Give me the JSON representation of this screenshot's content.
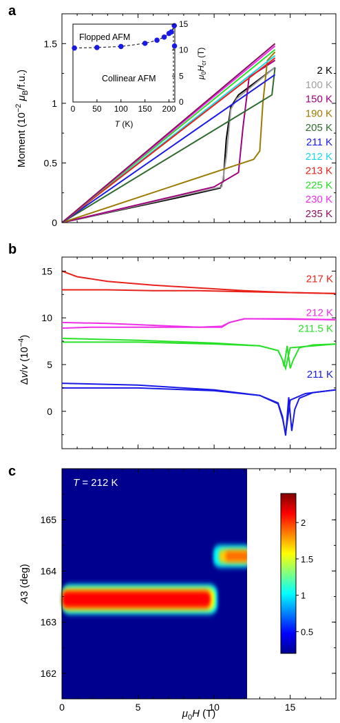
{
  "panels": {
    "a": "a",
    "b": "b",
    "c": "c"
  },
  "chart_data": [
    {
      "panel": "a",
      "type": "line",
      "xlabel": "",
      "ylabel": "Moment (10^-2 μB/f.u.)",
      "ylabel_parts": {
        "pre": "Moment (10",
        "exp": "−2",
        "mu": " μ",
        "sub": "B",
        "post": "/f.u.)"
      },
      "xlim": [
        0,
        18
      ],
      "ylim": [
        0,
        1.75
      ],
      "yticks": [
        0,
        0.5,
        1,
        1.5
      ],
      "ytick_labels": [
        "0",
        "0.5",
        "1",
        "1.5"
      ],
      "series": [
        {
          "name": "2 K",
          "color": "#000000",
          "x": [
            0,
            8,
            10.4,
            10.6,
            10.8,
            11.1,
            11.6,
            14
          ],
          "y": [
            0,
            0.22,
            0.29,
            0.35,
            0.7,
            0.97,
            1.07,
            1.3
          ]
        },
        {
          "name": "100 K",
          "color": "#a0a0a0",
          "x": [
            0,
            8,
            10.5,
            10.8,
            11.1,
            11.5,
            14
          ],
          "y": [
            0,
            0.23,
            0.3,
            0.55,
            0.95,
            1.04,
            1.3
          ]
        },
        {
          "name": "150 K",
          "color": "#a0007c",
          "x": [
            0,
            10,
            11.6,
            11.9,
            12.3,
            14
          ],
          "y": [
            0,
            0.3,
            0.42,
            0.8,
            1.22,
            1.36
          ]
        },
        {
          "name": "190 K",
          "color": "#9a7a00",
          "x": [
            0,
            12.6,
            13,
            13.2,
            13.5,
            14
          ],
          "y": [
            0,
            0.53,
            0.6,
            1.0,
            1.36,
            1.43
          ]
        },
        {
          "name": "205 K",
          "color": "#2f6b2f",
          "x": [
            0,
            13.8,
            14
          ],
          "y": [
            0,
            1.07,
            1.3
          ]
        },
        {
          "name": "211 K",
          "color": "#1a1ae6",
          "x": [
            0,
            14
          ],
          "y": [
            0,
            1.24
          ]
        },
        {
          "name": "212 K",
          "color": "#18d8e8",
          "x": [
            0,
            14
          ],
          "y": [
            0,
            1.4
          ]
        },
        {
          "name": "213 K",
          "color": "#e8221a",
          "x": [
            0,
            14
          ],
          "y": [
            0,
            1.38
          ]
        },
        {
          "name": "225 K",
          "color": "#27e027",
          "x": [
            0,
            14
          ],
          "y": [
            0,
            1.45
          ]
        },
        {
          "name": "230 K",
          "color": "#ee2fe8",
          "x": [
            0,
            14
          ],
          "y": [
            0,
            1.48
          ]
        },
        {
          "name": "235 K",
          "color": "#8a1060",
          "x": [
            0,
            14
          ],
          "y": [
            0,
            1.5
          ]
        }
      ]
    },
    {
      "panel": "a-inset",
      "type": "scatter",
      "xlabel": "T (K)",
      "ylabel": "μ0Hcr (T)",
      "xlim": [
        0,
        215
      ],
      "ylim": [
        0,
        15
      ],
      "xticks": [
        0,
        50,
        100,
        150,
        200
      ],
      "yticks": [
        0,
        5,
        10,
        15
      ],
      "annotations": [
        "Flopped AFM",
        "Collinear AFM"
      ],
      "x": [
        3,
        50,
        100,
        150,
        175,
        190,
        200,
        205,
        211,
        211.5
      ],
      "y": [
        10.4,
        10.5,
        10.7,
        11.3,
        11.9,
        12.5,
        13.2,
        13.5,
        14.7,
        10.8
      ]
    },
    {
      "panel": "b",
      "type": "line",
      "ylabel": "Δv/v (10^-4)",
      "xlim": [
        0,
        18
      ],
      "ylim": [
        -4,
        16.5
      ],
      "yticks": [
        0,
        5,
        10,
        15
      ],
      "ytick_labels": [
        "0",
        "5",
        "10",
        "15"
      ],
      "series": [
        {
          "name": "217 K",
          "color": "#e8221a",
          "x": [
            0,
            1,
            3,
            6,
            9,
            12,
            15,
            18
          ],
          "y": [
            15.0,
            14.4,
            13.9,
            13.5,
            13.2,
            12.9,
            12.7,
            12.6
          ]
        },
        {
          "name": "217 K",
          "color": "#e8221a",
          "x": [
            0,
            3,
            6,
            9,
            12,
            15,
            18
          ],
          "y": [
            13.0,
            13.0,
            12.9,
            12.9,
            12.8,
            12.7,
            12.6
          ]
        },
        {
          "name": "212 K",
          "color": "#ee2fe8",
          "x": [
            0,
            3,
            6,
            9,
            10.5,
            11,
            12,
            15,
            18
          ],
          "y": [
            9.5,
            9.4,
            9.2,
            9.0,
            9.0,
            9.5,
            9.9,
            9.9,
            9.8
          ]
        },
        {
          "name": "212 K",
          "color": "#ee2fe8",
          "x": [
            0,
            2,
            5,
            9,
            10.5,
            11,
            12,
            18
          ],
          "y": [
            8.9,
            9.0,
            9.0,
            9.0,
            9.1,
            9.5,
            9.9,
            9.8
          ]
        },
        {
          "name": "211.5 K",
          "color": "#27e027",
          "x": [
            0,
            5,
            10,
            13,
            14.2,
            14.5,
            14.6,
            14.8,
            15.0,
            15.2,
            15.6,
            16.5,
            18
          ],
          "y": [
            7.8,
            7.6,
            7.3,
            7.0,
            6.5,
            5.5,
            4.8,
            7.0,
            4.6,
            5.5,
            6.8,
            7.1,
            7.2
          ]
        },
        {
          "name": "211.5 K",
          "color": "#27e027",
          "x": [
            0,
            5,
            10,
            13,
            14.2,
            14.5,
            14.7,
            15,
            18
          ],
          "y": [
            7.4,
            7.4,
            7.2,
            7.0,
            6.5,
            5.5,
            4.6,
            6.8,
            7.2
          ]
        },
        {
          "name": "211 K",
          "color": "#1a1ae6",
          "x": [
            0,
            5,
            10,
            13,
            14.2,
            14.5,
            14.7,
            14.9,
            15.1,
            15.3,
            15.6,
            16.5,
            18
          ],
          "y": [
            3.0,
            2.8,
            2.3,
            1.7,
            0.9,
            -0.6,
            -2.6,
            1.5,
            -2.1,
            0.2,
            1.4,
            2.0,
            2.3
          ]
        },
        {
          "name": "211 K",
          "color": "#1a1ae6",
          "x": [
            0,
            5,
            10,
            13,
            14.2,
            14.5,
            14.7,
            15,
            16,
            18
          ],
          "y": [
            2.5,
            2.5,
            2.2,
            1.7,
            0.8,
            -0.8,
            -2.4,
            1.2,
            1.9,
            2.3
          ]
        }
      ],
      "labels": [
        "217 K",
        "212 K",
        "211.5 K",
        "211 K"
      ]
    },
    {
      "panel": "c",
      "type": "heatmap",
      "annotation": "T = 212 K",
      "xlabel": "μ0H (T)",
      "ylabel": "A3 (deg)",
      "xlim": [
        0,
        18
      ],
      "ylim": [
        161.5,
        166
      ],
      "xticks": [
        0,
        5,
        10,
        15
      ],
      "yticks": [
        162,
        163,
        164,
        165
      ],
      "data_xlim": [
        0,
        12
      ],
      "features": [
        {
          "x_range": [
            0,
            10.0
          ],
          "y_center": 162.88,
          "y_halfwidth": 0.2,
          "intensity": 2.4
        },
        {
          "x_range": [
            10.6,
            12
          ],
          "y_center": 164.5,
          "y_halfwidth": 0.13,
          "intensity": 1.7
        }
      ],
      "colorbar": {
        "min": 0.2,
        "max": 2.4,
        "ticks": [
          0.5,
          1,
          1.5,
          2
        ],
        "tick_labels": [
          "0.5",
          "1",
          "1.5",
          "2"
        ]
      }
    }
  ]
}
